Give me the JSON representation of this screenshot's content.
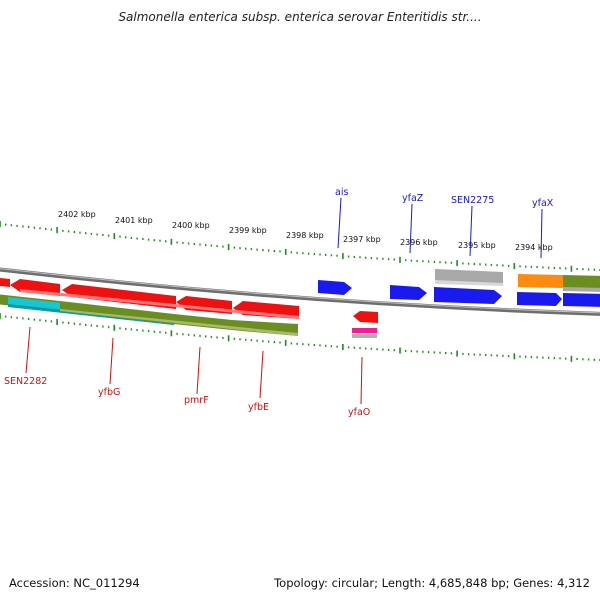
{
  "title": "Salmonella enterica subsp. enterica serovar Enteritidis str....",
  "footer": {
    "accession": "Accession: NC_011294",
    "topology": "Topology: circular; Length: 4,685,848 bp; Genes: 4,312"
  },
  "colors": {
    "backbone": "#8a8a8a",
    "tick": "#1f8a1f",
    "label_forward": "#1a1acc",
    "label_reverse": "#cc1111"
  },
  "kbp_labels": [
    "2402 kbp",
    "2401 kbp",
    "2400 kbp",
    "2399 kbp",
    "2398 kbp",
    "2397 kbp",
    "2396 kbp",
    "2395 kbp",
    "2394 kbp"
  ],
  "gene_labels_top": [
    "ais",
    "yfaZ",
    "SEN2275",
    "yfaX"
  ],
  "gene_labels_bottom": [
    "SEN2282",
    "yfbG",
    "pmrF",
    "yfbE",
    "yfaO"
  ]
}
